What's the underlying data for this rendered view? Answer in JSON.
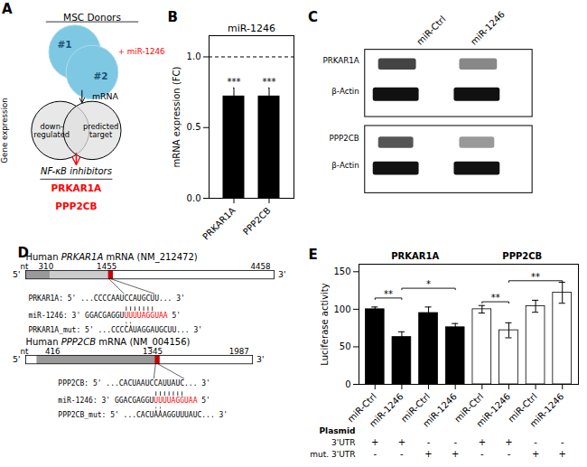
{
  "chart_data": [
    {
      "type": "schematic",
      "label": "A",
      "texts": {
        "donors": "MSC Donors",
        "donor_1": "#1",
        "donor_2": "#2",
        "treatment": "+ miR-1246",
        "step": "mRNA",
        "set_1": "down-\nregulated",
        "set_2": "predicted\ntarget",
        "side_label": "Gene expression",
        "result_title": "NF-κB inhibitors",
        "results": [
          "PRKAR1A",
          "PPP2CB"
        ]
      }
    },
    {
      "type": "bar",
      "label": "B",
      "title": "miR-1246",
      "categories": [
        "PRKAR1A",
        "PPP2CB"
      ],
      "values": [
        0.72,
        0.72
      ],
      "errors": [
        0.06,
        0.06
      ],
      "significance": [
        "***",
        "***"
      ],
      "ylabel": "mRNA expression (FC)",
      "ylim": [
        0,
        1.15
      ],
      "yticks": [
        {
          "value": 0,
          "label": "0.0"
        },
        0.5,
        {
          "value": 1,
          "label": "1.0"
        }
      ],
      "reference_line": 1.0,
      "color": "black"
    },
    {
      "type": "blot",
      "label": "C",
      "lanes": [
        "miR-Ctrl",
        "miR-1246"
      ],
      "rows": [
        "PRKAR1A",
        "β-Actin",
        "PPP2CB",
        "β-Actin"
      ]
    },
    {
      "type": "mrna",
      "label": "D",
      "genes": [
        {
          "title": [
            "Human ",
            "PRKAR1A",
            " mRNA (NM_212472)"
          ],
          "nt_label": "nt",
          "positions": [
            310,
            1455,
            4458
          ],
          "ends": [
            "5'",
            "3'"
          ],
          "target": "PRKAR1A: 5' ...CCCCAAUCCAUGCUU... 3'",
          "mirna": [
            "miR-1246: 3' GGACGAGGU",
            "UUUUAGGUAA",
            " 5'"
          ],
          "mutant": "PRKAR1A_mut: 5' ...CCCCAUAGGAUGCUU... 3'"
        },
        {
          "title": [
            "Human ",
            "PPP2CB",
            " mRNA (NM_004156)"
          ],
          "nt_label": "nt",
          "positions": [
            416,
            1345,
            1987
          ],
          "ends": [
            "5'",
            "3'"
          ],
          "target": "PPP2CB: 5' ...CACUAAUCCAUUAUC... 3'",
          "mirna": [
            "miR-1246: 3' GGACGAGGU",
            "UUUUAGGUAA",
            " 5'"
          ],
          "mutant": "PPP2CB_mut: 5' ...CACUAAAGGUUUAUC... 3'"
        }
      ]
    },
    {
      "type": "bar",
      "label": "E",
      "categories": [
        "miR-Ctrl",
        "miR-1246",
        "miR-Ctrl",
        "miR-1246",
        "miR-Ctrl",
        "miR-1246",
        "miR-Ctrl",
        "miR-1246"
      ],
      "values": [
        100,
        63,
        95,
        76,
        100,
        72,
        104,
        122
      ],
      "errors": [
        3,
        7,
        8,
        5,
        5,
        10,
        8,
        14
      ],
      "colors": [
        "black",
        "black",
        "black",
        "black",
        "white",
        "white",
        "white",
        "white"
      ],
      "ylabel": "Luciferase activity",
      "ylim": [
        0,
        160
      ],
      "yticks": [
        0,
        50,
        100,
        150
      ],
      "groups": [
        {
          "label": "PRKAR1A",
          "from": 0,
          "to": 3
        },
        {
          "label": "PPP2CB",
          "from": 4,
          "to": 7
        }
      ],
      "brackets": [
        {
          "from": 0,
          "to": 1,
          "y": 115,
          "label": "**"
        },
        {
          "from": 1,
          "to": 3,
          "y": 128,
          "label": "*"
        },
        {
          "from": 4,
          "to": 5,
          "y": 110,
          "label": "**"
        },
        {
          "from": 5,
          "to": 7,
          "y": 138,
          "label": "**"
        }
      ],
      "table": {
        "title": "Plasmid",
        "rows": [
          {
            "label": "3'UTR",
            "values": [
              "+",
              "+",
              "-",
              "-",
              "+",
              "+",
              "-",
              "-"
            ]
          },
          {
            "label": "mut. 3'UTR",
            "values": [
              "-",
              "-",
              "+",
              "+",
              "-",
              "-",
              "+",
              "+"
            ]
          }
        ]
      }
    }
  ]
}
